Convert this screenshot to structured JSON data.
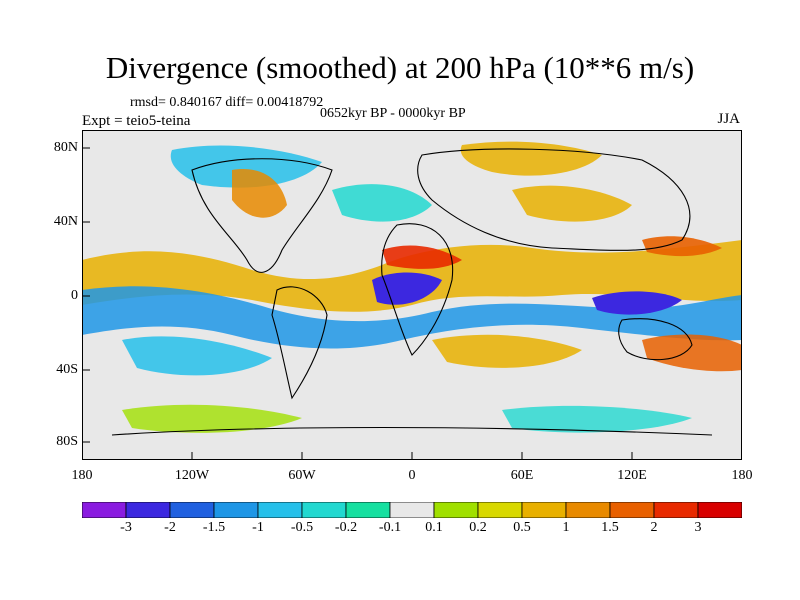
{
  "title": "Divergence (smoothed) at 200 hPa (10**6 m/s)",
  "stats": "rmsd= 0.840167 diff= 0.00418792",
  "experiment": "Expt = teio5-teina",
  "period": "0652kyr BP - 0000kyr BP",
  "season": "JJA",
  "lat_ticks": [
    "80N",
    "40N",
    "0",
    "40S",
    "80S"
  ],
  "lon_ticks": [
    "180",
    "120W",
    "60W",
    "0",
    "60E",
    "120E",
    "180"
  ],
  "colorbar": {
    "labels": [
      "-3",
      "-2",
      "-1.5",
      "-1",
      "-0.5",
      "-0.2",
      "-0.1",
      "0.1",
      "0.2",
      "0.5",
      "1",
      "1.5",
      "2",
      "3"
    ],
    "colors": [
      "#8a1be0",
      "#3c28e0",
      "#2060e0",
      "#1e96e6",
      "#26c0ea",
      "#22d8d0",
      "#16e0a0",
      "#e8e8e8",
      "#a0e000",
      "#d8d800",
      "#e8b000",
      "#e88a00",
      "#e86000",
      "#e82a00",
      "#d80000"
    ]
  }
}
